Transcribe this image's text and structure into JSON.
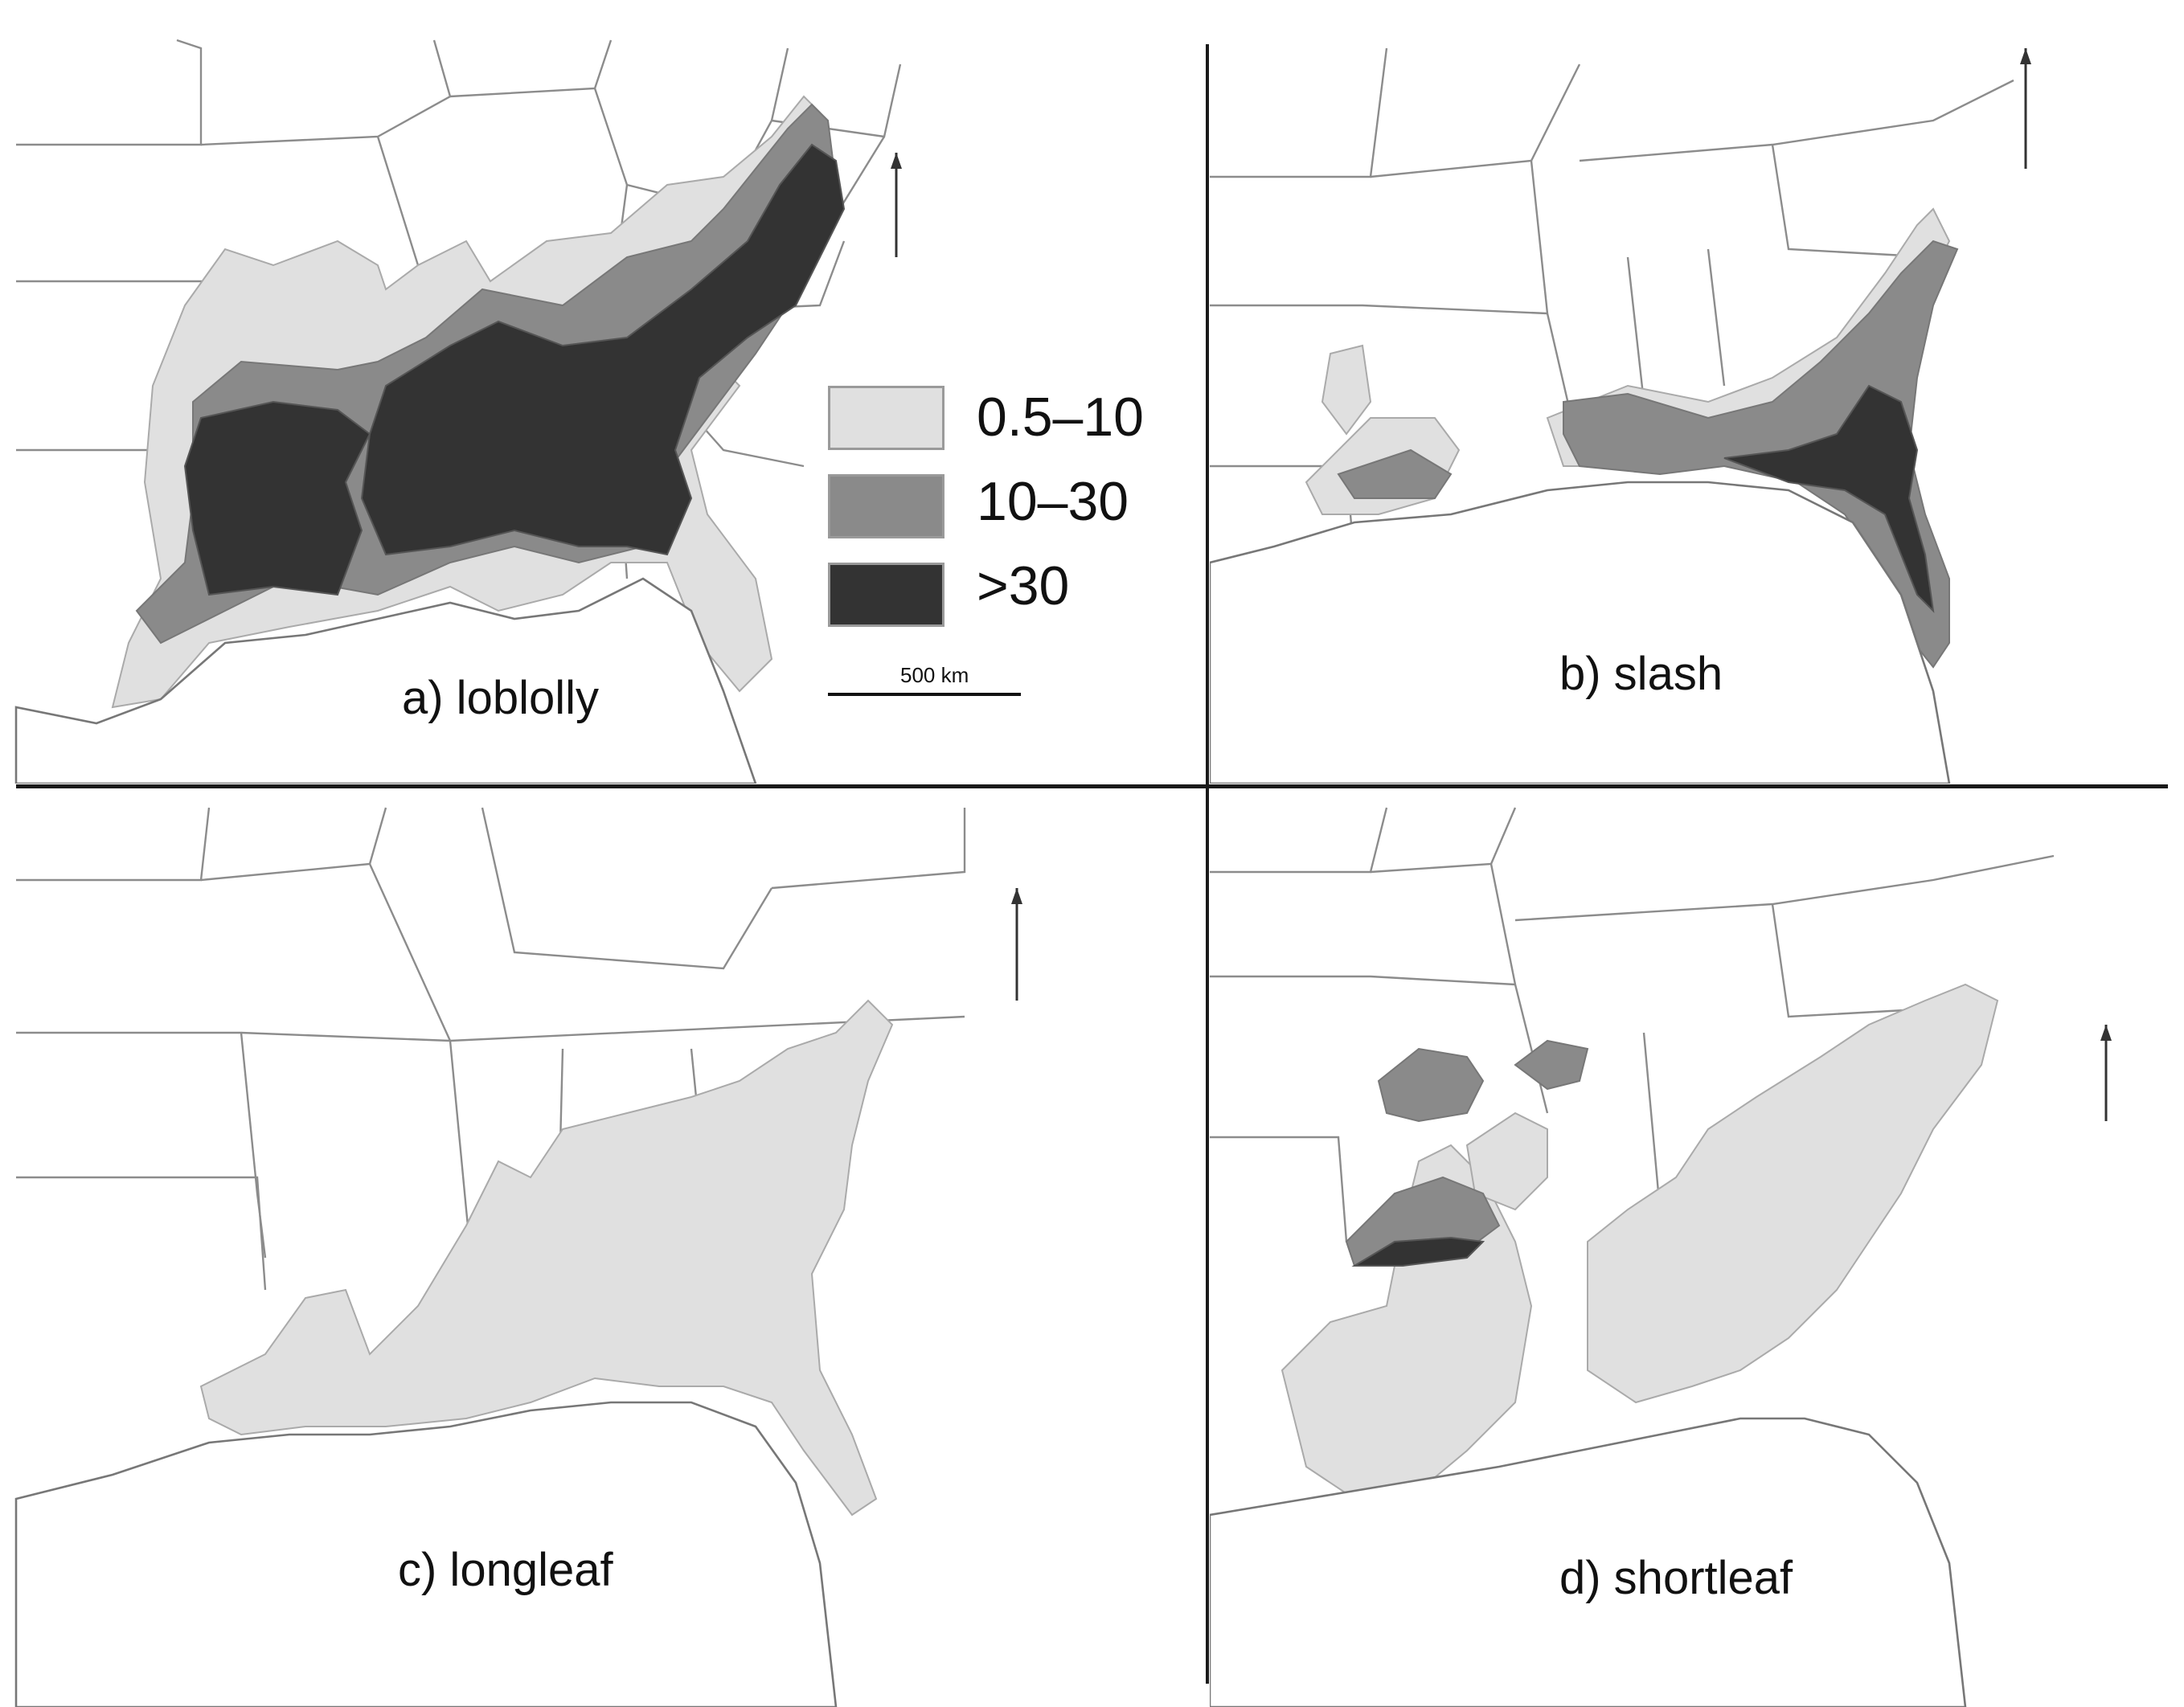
{
  "legend": {
    "items": [
      {
        "label": "0.5–10",
        "color": "#e0e0e0"
      },
      {
        "label": "10–30",
        "color": "#8a8a8a"
      },
      {
        "label": ">30",
        "color": "#333333"
      }
    ],
    "scalebar_label": "500 km"
  },
  "panels": [
    {
      "id": "a",
      "label": "a) loblolly"
    },
    {
      "id": "b",
      "label": "b) slash"
    },
    {
      "id": "c",
      "label": "c) longleaf"
    },
    {
      "id": "d",
      "label": "d) shortleaf"
    }
  ],
  "colors": {
    "background": "#ffffff",
    "light": "#e0e0e0",
    "medium": "#8a8a8a",
    "dark": "#333333",
    "divider": "#1a1a1a"
  }
}
